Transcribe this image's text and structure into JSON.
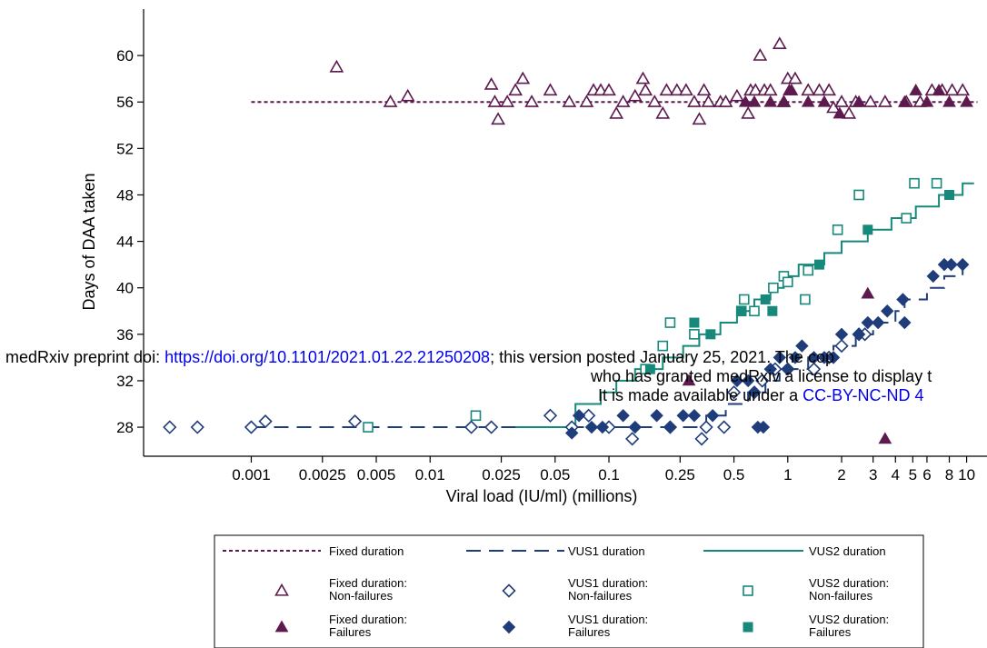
{
  "chart_data": {
    "type": "scatter",
    "xlabel": "Viral load (IU/ml) (millions)",
    "ylabel": "Days of DAA taken",
    "x_scale": "log",
    "xlim": [
      0.00025,
      13
    ],
    "ylim": [
      25.5,
      64
    ],
    "x_ticks": [
      {
        "value": 0.001,
        "label": "0.001"
      },
      {
        "value": 0.0025,
        "label": "0.0025"
      },
      {
        "value": 0.005,
        "label": "0.005"
      },
      {
        "value": 0.01,
        "label": "0.01"
      },
      {
        "value": 0.025,
        "label": "0.025"
      },
      {
        "value": 0.05,
        "label": "0.05"
      },
      {
        "value": 0.1,
        "label": "0.1"
      },
      {
        "value": 0.25,
        "label": "0.25"
      },
      {
        "value": 0.5,
        "label": "0.5"
      },
      {
        "value": 1,
        "label": "1"
      },
      {
        "value": 2,
        "label": "2"
      },
      {
        "value": 3,
        "label": "3"
      },
      {
        "value": 4,
        "label": "4"
      },
      {
        "value": 5,
        "label": "5"
      },
      {
        "value": 6,
        "label": "6"
      },
      {
        "value": 8,
        "label": "8"
      },
      {
        "value": 10,
        "label": "10"
      }
    ],
    "y_ticks": [
      28,
      32,
      36,
      40,
      44,
      48,
      52,
      56,
      60
    ],
    "colors": {
      "fixed": "#5c1a4e",
      "vus1": "#1f3d7a",
      "vus2": "#16897a"
    },
    "lines": [
      {
        "name": "Fixed duration",
        "style": "dotted",
        "color": "#5c1a4e",
        "points": [
          [
            0.001,
            56
          ],
          [
            11.5,
            56
          ]
        ]
      },
      {
        "name": "VUS1 duration",
        "style": "dashed",
        "color": "#1f3d7a",
        "points": [
          [
            0.001,
            28
          ],
          [
            0.07,
            28
          ],
          [
            0.2,
            28
          ],
          [
            0.35,
            29
          ],
          [
            0.45,
            30
          ],
          [
            0.6,
            31
          ],
          [
            0.75,
            32
          ],
          [
            0.9,
            33
          ],
          [
            1.3,
            34
          ],
          [
            1.8,
            35
          ],
          [
            2.4,
            36
          ],
          [
            3,
            37
          ],
          [
            4,
            38
          ],
          [
            4.5,
            39
          ],
          [
            6,
            40
          ],
          [
            7.5,
            41
          ],
          [
            9.5,
            42
          ]
        ]
      },
      {
        "name": "VUS2 duration",
        "style": "solid",
        "color": "#16897a",
        "points": [
          [
            0.03,
            28
          ],
          [
            0.05,
            28
          ],
          [
            0.065,
            30
          ],
          [
            0.09,
            31
          ],
          [
            0.11,
            32
          ],
          [
            0.14,
            33
          ],
          [
            0.2,
            34
          ],
          [
            0.26,
            35
          ],
          [
            0.32,
            36
          ],
          [
            0.42,
            37
          ],
          [
            0.52,
            38
          ],
          [
            0.65,
            39
          ],
          [
            0.8,
            40
          ],
          [
            0.95,
            41
          ],
          [
            1.15,
            42
          ],
          [
            1.6,
            43
          ],
          [
            2.0,
            44
          ],
          [
            2.8,
            45
          ],
          [
            3.8,
            46
          ],
          [
            5.2,
            47
          ],
          [
            7.0,
            48
          ],
          [
            9.5,
            49
          ],
          [
            11,
            49
          ]
        ]
      }
    ],
    "series": [
      {
        "name": "Fixed duration: Non-failures",
        "marker": "triangle-open",
        "color": "#5c1a4e",
        "points": [
          [
            0.003,
            59
          ],
          [
            0.006,
            56
          ],
          [
            0.0075,
            56.5
          ],
          [
            0.022,
            57.5
          ],
          [
            0.023,
            56
          ],
          [
            0.024,
            54.5
          ],
          [
            0.027,
            56
          ],
          [
            0.03,
            57
          ],
          [
            0.033,
            58
          ],
          [
            0.037,
            56
          ],
          [
            0.047,
            57
          ],
          [
            0.06,
            56
          ],
          [
            0.075,
            56
          ],
          [
            0.082,
            57
          ],
          [
            0.09,
            57
          ],
          [
            0.1,
            57
          ],
          [
            0.11,
            55
          ],
          [
            0.12,
            56
          ],
          [
            0.14,
            56.5
          ],
          [
            0.155,
            58
          ],
          [
            0.16,
            57
          ],
          [
            0.18,
            56
          ],
          [
            0.2,
            55
          ],
          [
            0.21,
            57
          ],
          [
            0.24,
            57
          ],
          [
            0.27,
            57
          ],
          [
            0.3,
            56
          ],
          [
            0.32,
            54.5
          ],
          [
            0.34,
            57
          ],
          [
            0.36,
            56
          ],
          [
            0.42,
            56
          ],
          [
            0.45,
            56
          ],
          [
            0.52,
            56.5
          ],
          [
            0.6,
            55
          ],
          [
            0.62,
            57
          ],
          [
            0.66,
            57
          ],
          [
            0.7,
            60
          ],
          [
            0.74,
            57
          ],
          [
            0.8,
            57
          ],
          [
            0.9,
            61
          ],
          [
            0.95,
            56
          ],
          [
            1.0,
            58
          ],
          [
            1.1,
            58
          ],
          [
            1.3,
            57
          ],
          [
            1.5,
            57
          ],
          [
            1.7,
            57
          ],
          [
            1.8,
            55.5
          ],
          [
            2.0,
            56
          ],
          [
            2.2,
            55
          ],
          [
            2.4,
            56
          ],
          [
            2.9,
            56
          ],
          [
            3.5,
            56
          ],
          [
            4.6,
            56
          ],
          [
            5.5,
            56
          ],
          [
            6.4,
            57
          ],
          [
            7.3,
            57
          ],
          [
            8.3,
            57
          ],
          [
            9.5,
            57
          ]
        ]
      },
      {
        "name": "Fixed duration: Failures",
        "marker": "triangle-filled",
        "color": "#5c1a4e",
        "points": [
          [
            0.28,
            32
          ],
          [
            0.58,
            56
          ],
          [
            0.65,
            56
          ],
          [
            0.8,
            56
          ],
          [
            0.95,
            56
          ],
          [
            1.02,
            57
          ],
          [
            1.05,
            57
          ],
          [
            1.3,
            56
          ],
          [
            1.6,
            56
          ],
          [
            1.95,
            55
          ],
          [
            2.5,
            56
          ],
          [
            2.8,
            39.5
          ],
          [
            3.5,
            27
          ],
          [
            4.5,
            56
          ],
          [
            5.2,
            57
          ],
          [
            6.0,
            56
          ],
          [
            7.0,
            57
          ],
          [
            8.0,
            56
          ],
          [
            10,
            56
          ]
        ]
      },
      {
        "name": "VUS1 duration: Non-failures",
        "marker": "diamond-open",
        "color": "#1f3d7a",
        "points": [
          [
            0.00035,
            28
          ],
          [
            0.0005,
            28
          ],
          [
            0.001,
            28
          ],
          [
            0.0012,
            28.5
          ],
          [
            0.0038,
            28.5
          ],
          [
            0.017,
            28
          ],
          [
            0.022,
            28
          ],
          [
            0.047,
            29
          ],
          [
            0.062,
            28
          ],
          [
            0.077,
            29
          ],
          [
            0.1,
            28
          ],
          [
            0.135,
            27
          ],
          [
            0.22,
            28
          ],
          [
            0.33,
            27
          ],
          [
            0.35,
            28
          ],
          [
            0.44,
            28
          ],
          [
            0.5,
            31
          ],
          [
            0.65,
            31
          ],
          [
            0.72,
            32
          ],
          [
            0.85,
            33
          ],
          [
            1.0,
            33
          ],
          [
            1.4,
            33
          ],
          [
            1.7,
            34
          ],
          [
            2.0,
            35
          ],
          [
            2.5,
            36
          ],
          [
            2.7,
            36
          ]
        ]
      },
      {
        "name": "VUS1 duration: Failures",
        "marker": "diamond-filled",
        "color": "#1f3d7a",
        "points": [
          [
            0.062,
            27.5
          ],
          [
            0.068,
            29
          ],
          [
            0.08,
            28
          ],
          [
            0.092,
            28
          ],
          [
            0.12,
            29
          ],
          [
            0.14,
            28
          ],
          [
            0.185,
            29
          ],
          [
            0.22,
            28
          ],
          [
            0.26,
            29
          ],
          [
            0.3,
            29
          ],
          [
            0.38,
            29
          ],
          [
            0.52,
            32
          ],
          [
            0.6,
            32
          ],
          [
            0.65,
            31
          ],
          [
            0.68,
            28
          ],
          [
            0.73,
            28
          ],
          [
            0.8,
            33
          ],
          [
            0.9,
            34
          ],
          [
            1.0,
            33
          ],
          [
            1.1,
            34
          ],
          [
            1.2,
            35
          ],
          [
            1.4,
            34
          ],
          [
            1.6,
            34
          ],
          [
            1.8,
            34
          ],
          [
            2.0,
            36
          ],
          [
            2.5,
            36
          ],
          [
            2.8,
            37
          ],
          [
            3.2,
            37
          ],
          [
            3.6,
            38
          ],
          [
            4.4,
            39
          ],
          [
            4.5,
            37
          ],
          [
            6.5,
            41
          ],
          [
            7.5,
            42
          ],
          [
            8.2,
            42
          ],
          [
            9.5,
            42
          ]
        ]
      },
      {
        "name": "VUS2 duration: Non-failures",
        "marker": "square-open",
        "color": "#16897a",
        "points": [
          [
            0.0045,
            28
          ],
          [
            0.018,
            29
          ],
          [
            0.16,
            33
          ],
          [
            0.2,
            35
          ],
          [
            0.22,
            37
          ],
          [
            0.3,
            36
          ],
          [
            0.55,
            38
          ],
          [
            0.57,
            39
          ],
          [
            0.65,
            38
          ],
          [
            0.83,
            40
          ],
          [
            0.95,
            41
          ],
          [
            1.0,
            40.5
          ],
          [
            1.25,
            39
          ],
          [
            1.3,
            41.5
          ],
          [
            1.9,
            45
          ],
          [
            2.5,
            48
          ],
          [
            4.6,
            46
          ],
          [
            5.1,
            49
          ],
          [
            6.8,
            49
          ]
        ]
      },
      {
        "name": "VUS2 duration: Failures",
        "marker": "square-filled",
        "color": "#16897a",
        "points": [
          [
            0.17,
            33
          ],
          [
            0.3,
            37
          ],
          [
            0.37,
            36
          ],
          [
            0.55,
            38
          ],
          [
            0.75,
            39
          ],
          [
            0.82,
            38
          ],
          [
            1.5,
            42
          ],
          [
            2.8,
            45
          ],
          [
            8.0,
            48
          ]
        ]
      }
    ],
    "legend": {
      "placement": "bottom",
      "entries": [
        {
          "label": "Fixed duration",
          "kind": "line",
          "style": "dotted",
          "color": "#5c1a4e"
        },
        {
          "label": "VUS1 duration",
          "kind": "line",
          "style": "dashed",
          "color": "#1f3d7a"
        },
        {
          "label": "VUS2 duration",
          "kind": "line",
          "style": "solid",
          "color": "#16897a"
        },
        {
          "label": [
            "Fixed duration:",
            "Non-failures"
          ],
          "kind": "marker",
          "marker": "triangle-open",
          "color": "#5c1a4e"
        },
        {
          "label": [
            "VUS1 duration:",
            "Non-failures"
          ],
          "kind": "marker",
          "marker": "diamond-open",
          "color": "#1f3d7a"
        },
        {
          "label": [
            "VUS2 duration:",
            "Non-failures"
          ],
          "kind": "marker",
          "marker": "square-open",
          "color": "#16897a"
        },
        {
          "label": [
            "Fixed duration:",
            "Failures"
          ],
          "kind": "marker",
          "marker": "triangle-filled",
          "color": "#5c1a4e"
        },
        {
          "label": [
            "VUS1 duration:",
            "Failures"
          ],
          "kind": "marker",
          "marker": "diamond-filled",
          "color": "#1f3d7a"
        },
        {
          "label": [
            "VUS2 duration:",
            "Failures"
          ],
          "kind": "marker",
          "marker": "square-filled",
          "color": "#16897a"
        }
      ]
    },
    "grid": false
  },
  "watermark": {
    "line1_prefix": "medRxiv preprint doi: ",
    "line1_link": "https://doi.org/10.1101/2021.01.22.21250208",
    "line1_suffix": "; this version posted January 25, 2021. The cop",
    "line2": "who has granted medRxiv a license to display t",
    "line3_prefix": "It is made available under a ",
    "line3_link": "CC-BY-NC-ND 4"
  }
}
